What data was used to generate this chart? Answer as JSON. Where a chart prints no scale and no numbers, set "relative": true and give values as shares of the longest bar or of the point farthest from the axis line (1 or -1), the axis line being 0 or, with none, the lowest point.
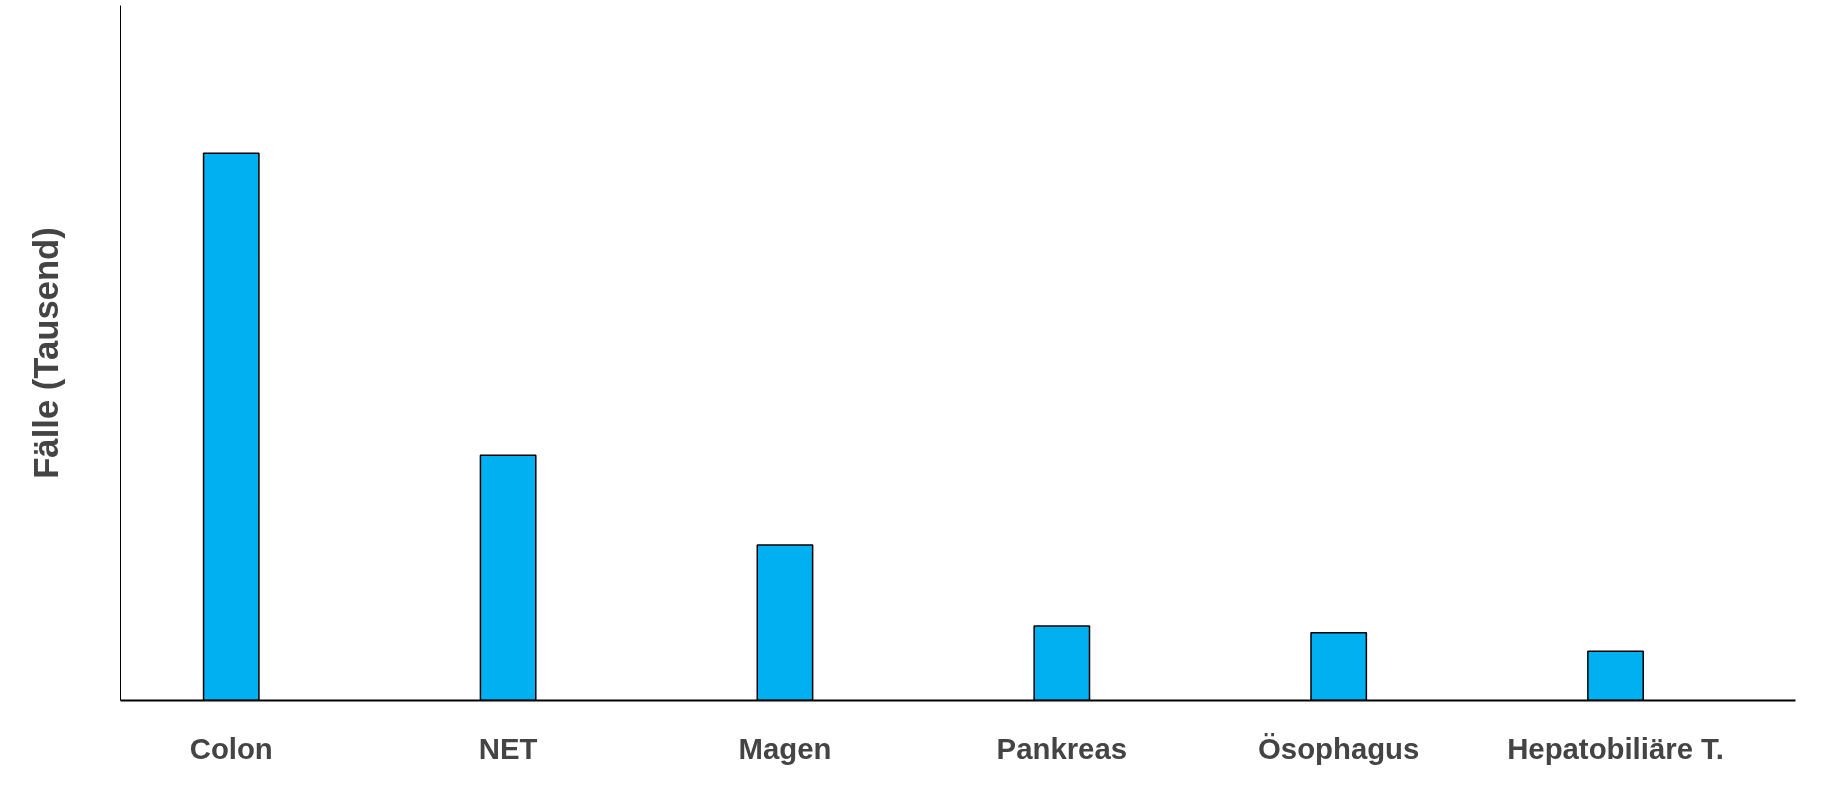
{
  "chart_data": {
    "type": "bar",
    "ylabel": "Fälle (Tausend)",
    "categories": [
      "Colon",
      "NET",
      "Magen",
      "Pankreas",
      "Ösophagus",
      "Hepatobiliäre T."
    ],
    "values": [
      1,
      0.448,
      0.284,
      0.136,
      0.124,
      0.09
    ],
    "color": "#00b0f0",
    "relative": true,
    "grid": false
  }
}
